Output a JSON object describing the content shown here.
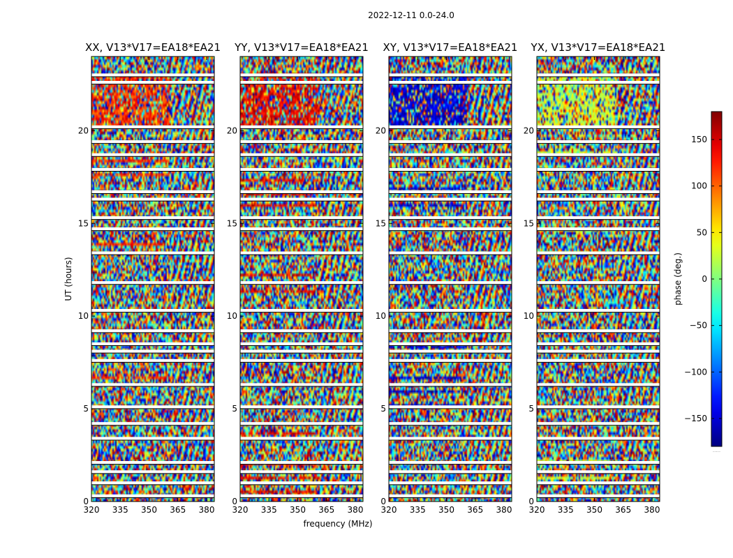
{
  "figure_title": "2022-12-11 0.0-24.0",
  "chart_data": {
    "type": "heatmap",
    "suptitle": "2022-12-11 0.0-24.0",
    "xlabel": "frequency (MHz)",
    "ylabel": "UT (hours)",
    "xlim": [
      320,
      384
    ],
    "ylim": [
      0,
      24
    ],
    "xticks": [
      320,
      335,
      350,
      365,
      380
    ],
    "yticks": [
      0,
      5,
      10,
      15,
      20
    ],
    "colormap": "jet",
    "colorbar": {
      "label": "phase (deg.)",
      "range": [
        -180,
        180
      ],
      "ticks": [
        -150,
        -100,
        -50,
        0,
        50,
        100,
        150
      ],
      "tick_labels": [
        "−150",
        "−100",
        "−50",
        "0",
        "50",
        "100",
        "150"
      ]
    },
    "panels": [
      {
        "title": "XX, V13*V17=EA18*EA21",
        "polarization": "XX",
        "baseline": "V13*V17=EA18*EA21",
        "coherent_phase_deg": 120
      },
      {
        "title": "YY, V13*V17=EA18*EA21",
        "polarization": "YY",
        "baseline": "V13*V17=EA18*EA21",
        "coherent_phase_deg": 140
      },
      {
        "title": "XY, V13*V17=EA18*EA21",
        "polarization": "XY",
        "baseline": "V13*V17=EA18*EA21",
        "coherent_phase_deg": -150
      },
      {
        "title": "YX, V13*V17=EA18*EA21",
        "polarization": "YX",
        "baseline": "V13*V17=EA18*EA21",
        "coherent_phase_deg": 30
      }
    ],
    "flagged_ut_hours": [
      0.3,
      1.0,
      1.6,
      2.1,
      3.4,
      4.2,
      5.1,
      6.3,
      7.6,
      8.1,
      8.5,
      9.2,
      10.3,
      11.8,
      13.4,
      14.7,
      15.3,
      16.3,
      16.7,
      17.9,
      18.7,
      19.4,
      20.2,
      22.6,
      23.0
    ],
    "colorbar_footnote": "....."
  }
}
